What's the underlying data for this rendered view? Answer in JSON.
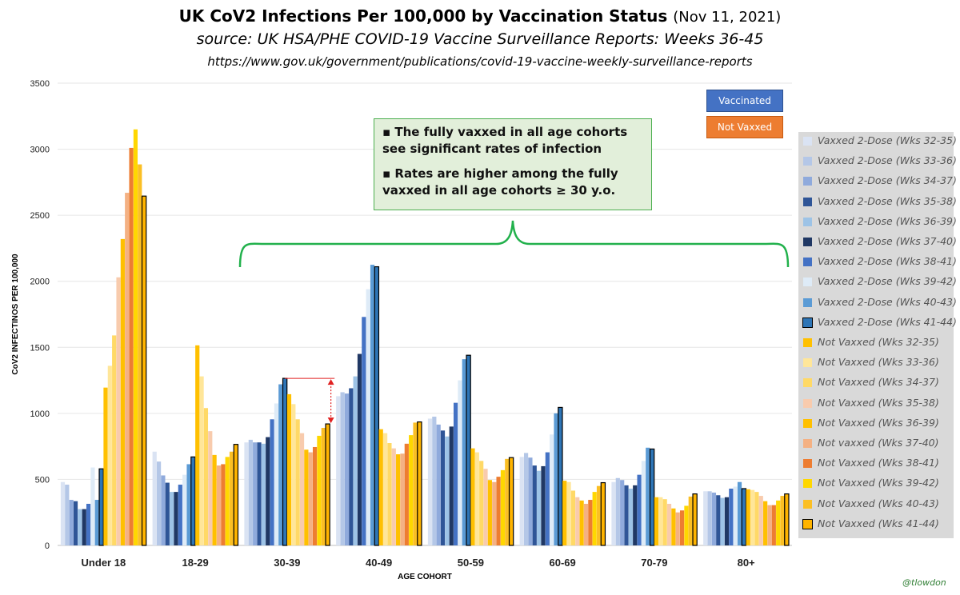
{
  "title": {
    "main": "UK CoV2 Infections Per 100,000 by Vaccination Status",
    "date": "(Nov 11, 2021)",
    "source": "source: UK HSA/PHE COVID-19 Vaccine Surveillance Reports: Weeks 36-45",
    "url": "https://www.gov.uk/government/publications/covid-19-vaccine-weekly-surveillance-reports"
  },
  "tags": {
    "vaccinated": "Vaccinated",
    "not_vaxxed": "Not Vaxxed"
  },
  "callout": {
    "line1": "▪ The fully vaxxed in all age cohorts see significant rates of infection",
    "line2": "▪ Rates are higher among the fully vaxxed in all age cohorts ≥ 30 y.o."
  },
  "credit": "@tlowdon",
  "colors": {
    "vaccinated_tag": "#4472c4",
    "not_vaxxed_tag": "#ed7d31",
    "bracket": "#22b14c",
    "arrow": "#e02020",
    "gridline": "#e6e6e6"
  },
  "chart_data": {
    "type": "bar",
    "title": "UK CoV2 Infections Per 100,000 by Vaccination Status",
    "xlabel": "AGE COHORT",
    "ylabel": "CoV2 INFECTINOS PER 100,000",
    "ylim": [
      0,
      3500
    ],
    "yticks": [
      0,
      500,
      1000,
      1500,
      2000,
      2500,
      3000,
      3500
    ],
    "grid": true,
    "legend_position": "right",
    "categories": [
      "Under 18",
      "18-29",
      "30-39",
      "40-49",
      "50-59",
      "60-69",
      "70-79",
      "80+"
    ],
    "series": [
      {
        "name": "Vaxxed 2-Dose (Wks 32-35)",
        "color": "#dae3f3",
        "outlined": false,
        "values": [
          480,
          710,
          780,
          1130,
          960,
          670,
          480,
          410
        ]
      },
      {
        "name": "Vaxxed 2-Dose (Wks 33-36)",
        "color": "#b4c7e7",
        "outlined": false,
        "values": [
          460,
          635,
          800,
          1160,
          975,
          700,
          510,
          410
        ]
      },
      {
        "name": "Vaxxed 2-Dose (Wks 34-37)",
        "color": "#8faadc",
        "outlined": false,
        "values": [
          345,
          530,
          780,
          1150,
          915,
          665,
          495,
          400
        ]
      },
      {
        "name": "Vaxxed 2-Dose (Wks 35-38)",
        "color": "#2f5597",
        "outlined": false,
        "values": [
          335,
          475,
          780,
          1190,
          870,
          605,
          455,
          380
        ]
      },
      {
        "name": "Vaxxed 2-Dose (Wks 36-39)",
        "color": "#9dc3e6",
        "outlined": false,
        "values": [
          275,
          405,
          770,
          1280,
          825,
          565,
          430,
          360
        ]
      },
      {
        "name": "Vaxxed 2-Dose (Wks 37-40)",
        "color": "#203864",
        "outlined": false,
        "values": [
          275,
          405,
          820,
          1450,
          900,
          600,
          455,
          365
        ]
      },
      {
        "name": "Vaxxed 2-Dose (Wks 38-41)",
        "color": "#4472c4",
        "outlined": false,
        "values": [
          315,
          460,
          955,
          1730,
          1080,
          705,
          535,
          430
        ]
      },
      {
        "name": "Vaxxed 2-Dose (Wks 39-42)",
        "color": "#deebf7",
        "outlined": false,
        "values": [
          590,
          535,
          1075,
          1940,
          1250,
          840,
          640,
          445
        ]
      },
      {
        "name": "Vaxxed 2-Dose (Wks 40-43)",
        "color": "#5b9bd5",
        "outlined": false,
        "values": [
          345,
          615,
          1220,
          2125,
          1410,
          1000,
          740,
          480
        ]
      },
      {
        "name": "Vaxxed 2-Dose (Wks 41-44)",
        "color": "#2e75b6",
        "outlined": true,
        "values": [
          580,
          670,
          1265,
          2110,
          1440,
          1045,
          730,
          430
        ]
      },
      {
        "name": "Not Vaxxed (Wks 32-35)",
        "color": "#ffc000",
        "outlined": false,
        "values": [
          1195,
          1515,
          1145,
          880,
          735,
          490,
          365,
          425
        ]
      },
      {
        "name": "Not Vaxxed (Wks 33-36)",
        "color": "#ffe699",
        "outlined": false,
        "values": [
          1360,
          1280,
          1070,
          850,
          705,
          480,
          365,
          420
        ]
      },
      {
        "name": "Not Vaxxed (Wks 34-37)",
        "color": "#ffd966",
        "outlined": false,
        "values": [
          1590,
          1040,
          955,
          775,
          640,
          415,
          350,
          405
        ]
      },
      {
        "name": "Not Vaxxed (Wks 35-38)",
        "color": "#f8cbad",
        "outlined": false,
        "values": [
          2030,
          865,
          850,
          735,
          580,
          365,
          315,
          375
        ]
      },
      {
        "name": "Not Vaxxed (Wks 36-39)",
        "color": "#ffc000",
        "outlined": false,
        "values": [
          2320,
          685,
          725,
          690,
          495,
          340,
          280,
          335
        ]
      },
      {
        "name": "Not vaxxed (Wks 37-40)",
        "color": "#f4b183",
        "outlined": false,
        "values": [
          2670,
          605,
          705,
          695,
          480,
          315,
          250,
          305
        ]
      },
      {
        "name": "Not Vaxxed (Wks 38-41)",
        "color": "#ed7d31",
        "outlined": false,
        "values": [
          3010,
          615,
          745,
          770,
          520,
          345,
          265,
          305
        ]
      },
      {
        "name": "Not Vaxxed (Wks 39-42)",
        "color": "#ffd700",
        "outlined": false,
        "values": [
          3150,
          670,
          830,
          835,
          570,
          405,
          300,
          340
        ]
      },
      {
        "name": "Not Vaxxed (Wks 40-43)",
        "color": "#fbbf24",
        "outlined": false,
        "values": [
          2885,
          710,
          890,
          930,
          655,
          450,
          370,
          375
        ]
      },
      {
        "name": "Not Vaxxed (Wks 41-44)",
        "color": "#ffb400",
        "outlined": true,
        "values": [
          2645,
          765,
          920,
          935,
          665,
          475,
          390,
          390
        ]
      }
    ]
  }
}
